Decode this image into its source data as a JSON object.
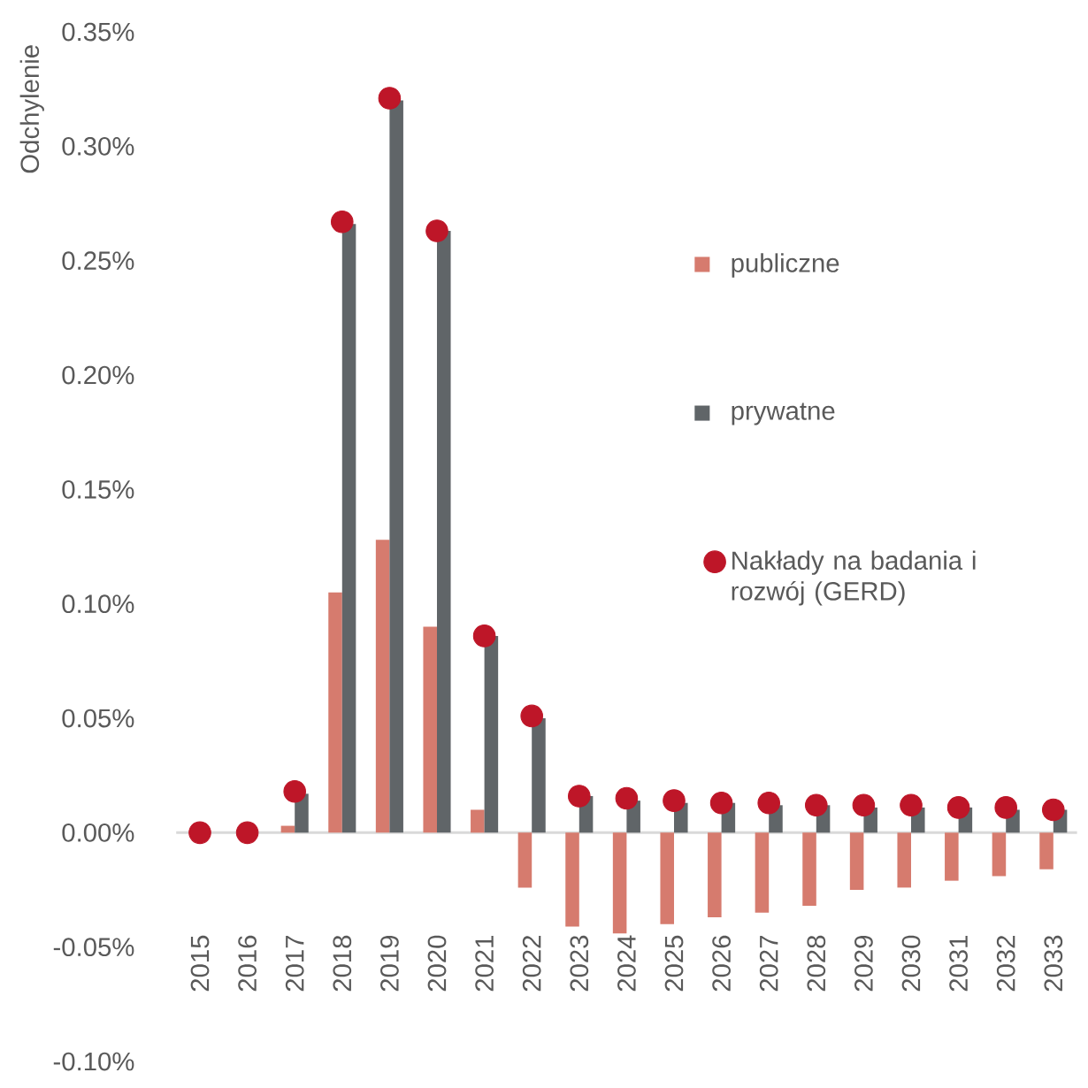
{
  "chart_data": {
    "type": "bar",
    "ylabel": "Odchylenie",
    "categories": [
      "2015",
      "2016",
      "2017",
      "2018",
      "2019",
      "2020",
      "2021",
      "2022",
      "2023",
      "2024",
      "2025",
      "2026",
      "2027",
      "2028",
      "2029",
      "2030",
      "2031",
      "2032",
      "2033"
    ],
    "series": [
      {
        "name": "publiczne",
        "color": "#d67b6e",
        "values": [
          0,
          0,
          0.003,
          0.105,
          0.128,
          0.09,
          0.01,
          -0.024,
          -0.041,
          -0.044,
          -0.04,
          -0.037,
          -0.035,
          -0.032,
          -0.025,
          -0.024,
          -0.021,
          -0.019,
          -0.016
        ]
      },
      {
        "name": "prywatne",
        "color": "#606568",
        "values": [
          0,
          0,
          0.017,
          0.266,
          0.32,
          0.263,
          0.086,
          0.05,
          0.016,
          0.014,
          0.013,
          0.013,
          0.012,
          0.012,
          0.011,
          0.011,
          0.011,
          0.01,
          0.01
        ]
      },
      {
        "name": "Nakłady na badania i rozwój (GERD)",
        "type": "scatter",
        "color": "#be1628",
        "values": [
          0,
          0,
          0.018,
          0.267,
          0.321,
          0.263,
          0.086,
          0.051,
          0.016,
          0.015,
          0.014,
          0.013,
          0.013,
          0.012,
          0.012,
          0.012,
          0.011,
          0.011,
          0.01
        ]
      }
    ],
    "ylim": [
      -0.1,
      0.35
    ],
    "yticks": [
      {
        "value": -0.1,
        "label": "-0.10%"
      },
      {
        "value": -0.05,
        "label": "-0.05%"
      },
      {
        "value": 0,
        "label": "0.00%"
      },
      {
        "value": 0.05,
        "label": "0.05%"
      },
      {
        "value": 0.1,
        "label": "0.10%"
      },
      {
        "value": 0.15,
        "label": "0.15%"
      },
      {
        "value": 0.2,
        "label": "0.20%"
      },
      {
        "value": 0.25,
        "label": "0.25%"
      },
      {
        "value": 0.3,
        "label": "0.30%"
      },
      {
        "value": 0.35,
        "label": "0.35%"
      }
    ],
    "marker": "circle",
    "legend": "right"
  }
}
